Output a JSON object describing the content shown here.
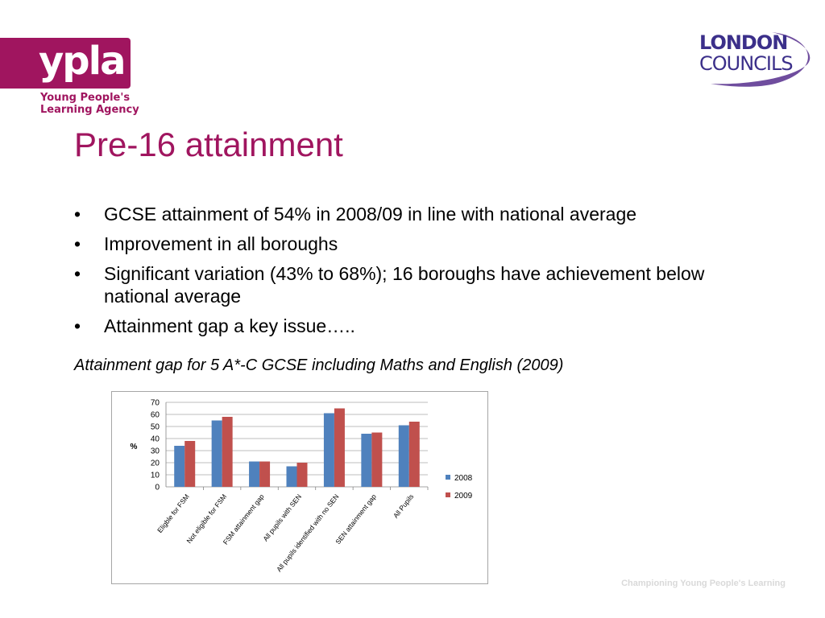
{
  "logos": {
    "ypla_word": "ypla",
    "ypla_subtitle": [
      "Young People's",
      "Learning Agency"
    ],
    "london_councils": [
      "LONDON",
      "COUNCILS"
    ]
  },
  "slide": {
    "title": "Pre-16 attainment",
    "bullets": [
      "GCSE attainment of 54% in 2008/09 in line with national average",
      "Improvement in all boroughs",
      "Significant variation (43% to 68%); 16 boroughs have achievement below national average",
      "Attainment gap a key issue….."
    ],
    "bullet_char": "•",
    "caption": "Attainment gap for 5 A*-C GCSE including Maths and English (2009)",
    "footer": "Championing Young People's Learning"
  },
  "chart_data": {
    "type": "bar",
    "title": "",
    "xlabel": "",
    "ylabel": "%",
    "ylim": [
      0,
      70
    ],
    "yticks": [
      0,
      10,
      20,
      30,
      40,
      50,
      60,
      70
    ],
    "grid": true,
    "legend_position": "right",
    "categories": [
      "Eligble for FSM",
      "Not eligible for FSM",
      "FSM attainment gap",
      "All pupils with SEN",
      "All pupils identified with no SEN",
      "SEN attainment gap",
      "All Pupils"
    ],
    "series": [
      {
        "name": "2008",
        "color": "#4f81bd",
        "values": [
          34,
          55,
          21,
          17,
          61,
          44,
          51
        ]
      },
      {
        "name": "2009",
        "color": "#c0504d",
        "values": [
          38,
          58,
          21,
          20,
          65,
          45,
          54
        ]
      }
    ]
  }
}
